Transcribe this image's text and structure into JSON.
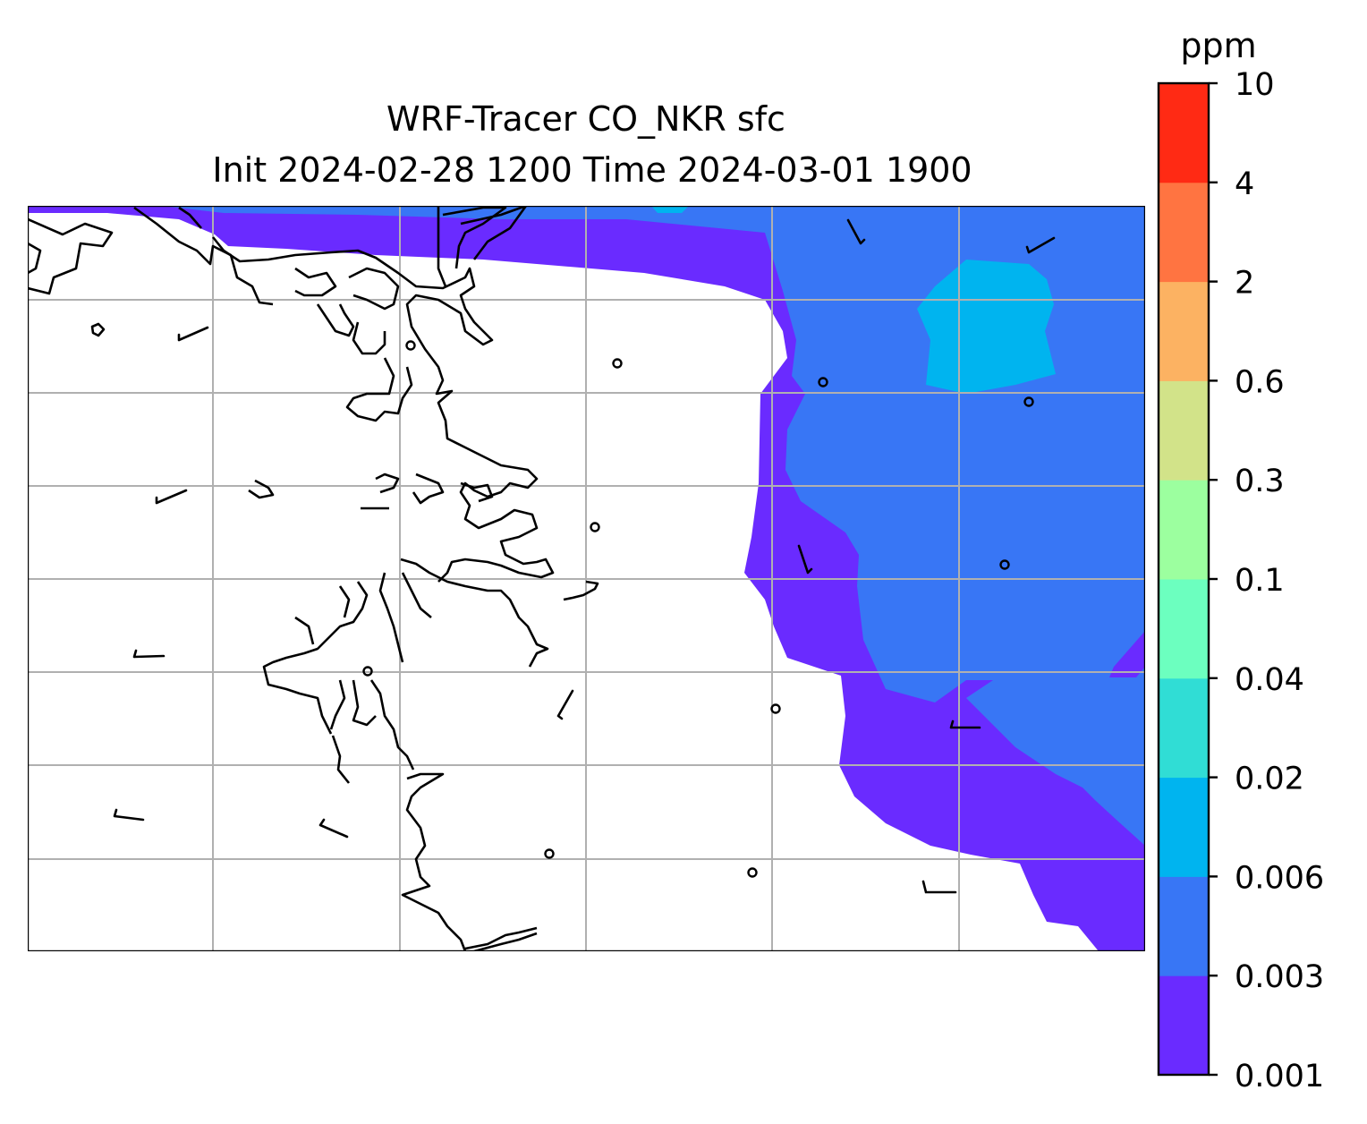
{
  "title": {
    "line1": "WRF-Tracer CO_NKR sfc",
    "line2": "Init 2024-02-28 1200 Time 2024-03-01 1900"
  },
  "colorbar": {
    "unit": "ppm",
    "levels": [
      "0.001",
      "0.003",
      "0.006",
      "0.02",
      "0.04",
      "0.1",
      "0.3",
      "0.6",
      "2",
      "4",
      "10"
    ],
    "colors": [
      "#6a2bff",
      "#3876f5",
      "#00b4ef",
      "#30ddd5",
      "#6cffbf",
      "#9cff9f",
      "#d2e389",
      "#fcb262",
      "#ff7441",
      "#ff2a14"
    ]
  },
  "map": {
    "colors": {
      "land_white": "#ffffff",
      "coast": "#000000",
      "grid": "#b0b0b0"
    },
    "fields": [
      "lowest concentration band",
      "0.003-0.006 band",
      "0.006-0.02 band"
    ]
  }
}
